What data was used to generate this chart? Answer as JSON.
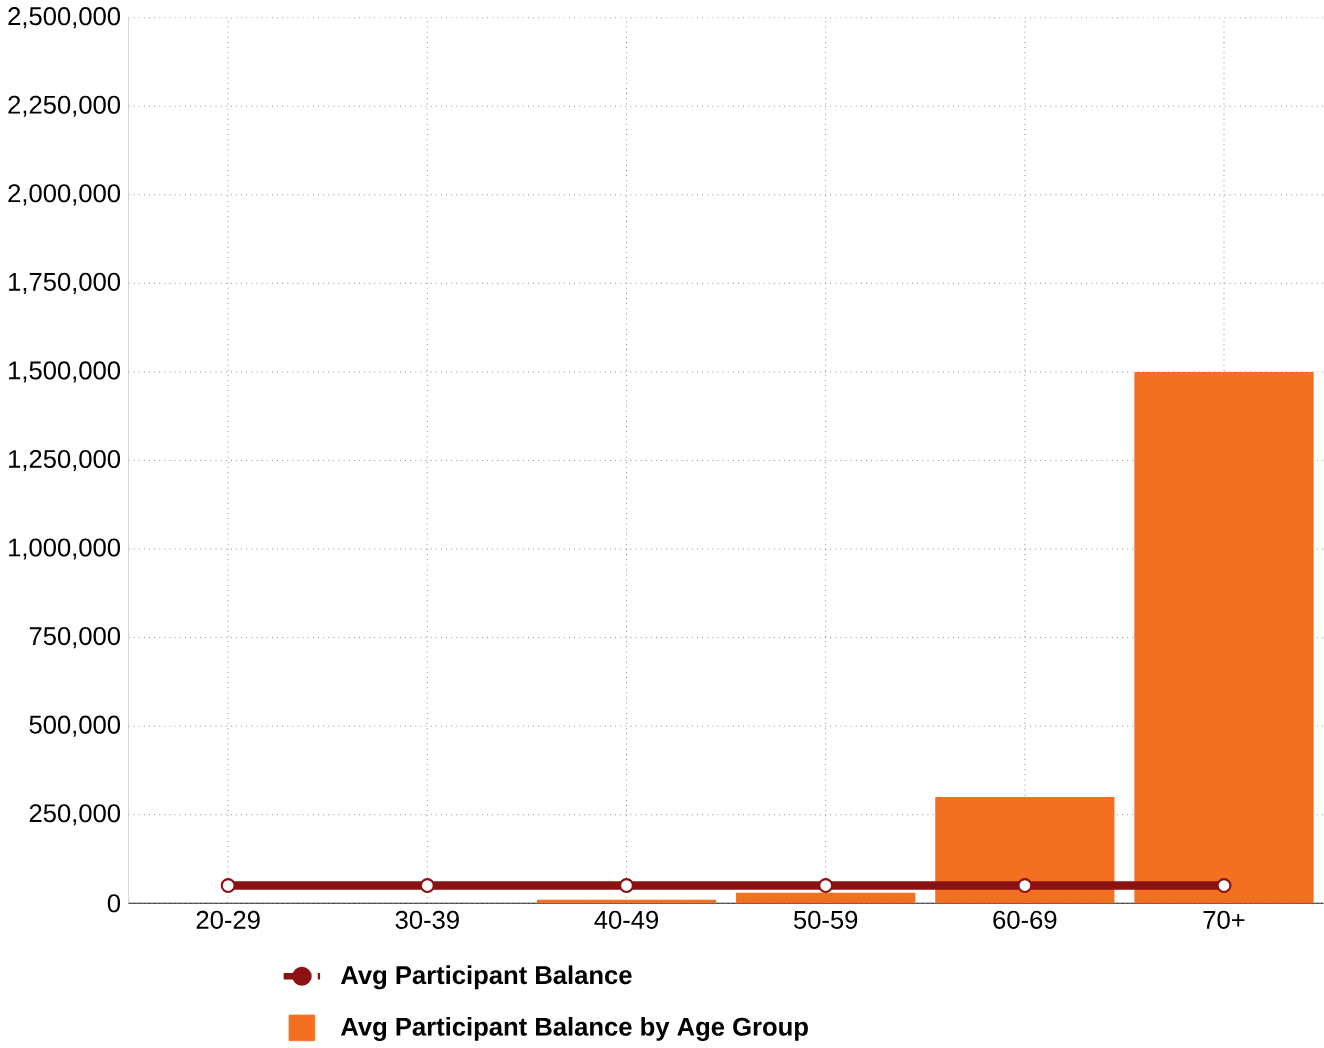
{
  "chart_data": {
    "type": "bar",
    "categories": [
      "20-29",
      "30-39",
      "40-49",
      "50-59",
      "60-69",
      "70+"
    ],
    "series": [
      {
        "name": "Avg Participant Balance",
        "type": "line",
        "color": "#8b1212",
        "marker": "circle",
        "values": [
          50000,
          50000,
          50000,
          50000,
          50000,
          50000
        ]
      },
      {
        "name": "Avg Participant Balance by Age Group",
        "color": "#f36f21",
        "values": [
          0,
          0,
          10000,
          30000,
          300000,
          1500000
        ]
      }
    ],
    "ylim": [
      0,
      2500000
    ],
    "yticks": [
      {
        "value": 0,
        "label": "0"
      },
      {
        "value": 250000,
        "label": "250,000"
      },
      {
        "value": 500000,
        "label": "500,000"
      },
      {
        "value": 750000,
        "label": "750,000"
      },
      {
        "value": 1000000,
        "label": "1,000,000"
      },
      {
        "value": 1250000,
        "label": "1,250,000"
      },
      {
        "value": 1500000,
        "label": "1,500,000"
      },
      {
        "value": 1750000,
        "label": "1,750,000"
      },
      {
        "value": 2000000,
        "label": "2,000,000"
      },
      {
        "value": 2250000,
        "label": "2,250,000"
      },
      {
        "value": 2500000,
        "label": "2,500,000"
      }
    ],
    "grid": true,
    "legend": "bottom"
  }
}
